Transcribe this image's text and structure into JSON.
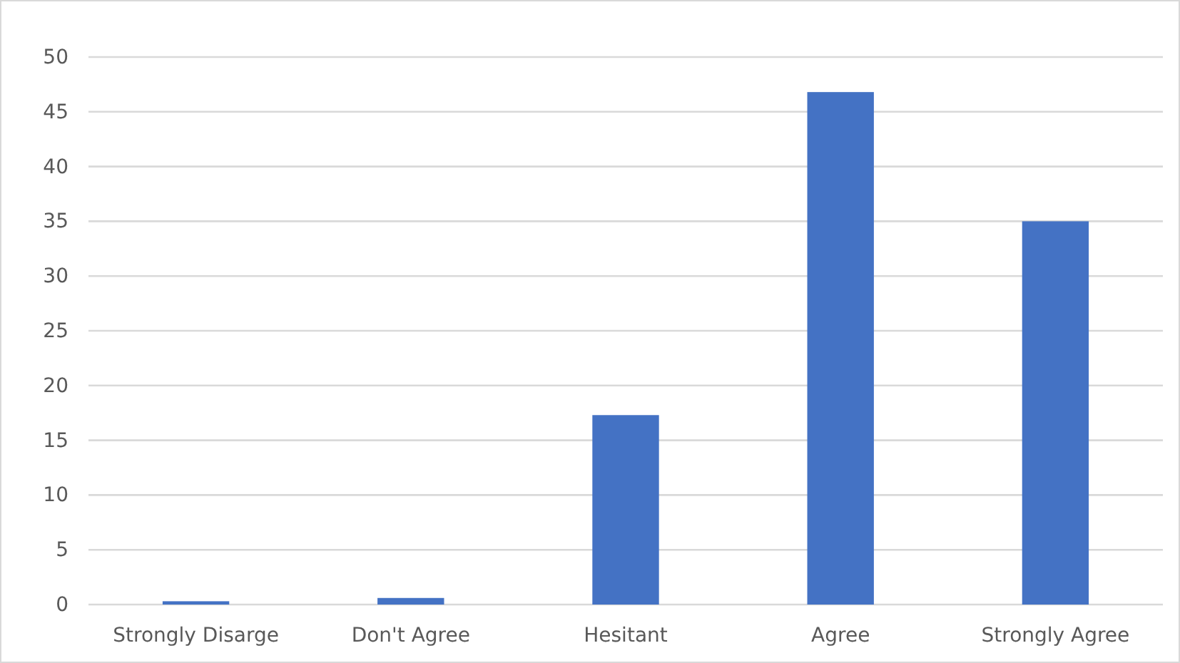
{
  "chart_data": {
    "type": "bar",
    "categories": [
      "Strongly Disarge",
      "Don't Agree",
      "Hesitant",
      "Agree",
      "Strongly Agree"
    ],
    "values": [
      0.3,
      0.6,
      17.3,
      46.8,
      35
    ],
    "color": "#4472c4",
    "ylim": [
      0,
      50
    ],
    "yticks": [
      0,
      5,
      10,
      15,
      20,
      25,
      30,
      35,
      40,
      45,
      50
    ],
    "grid": "y"
  }
}
